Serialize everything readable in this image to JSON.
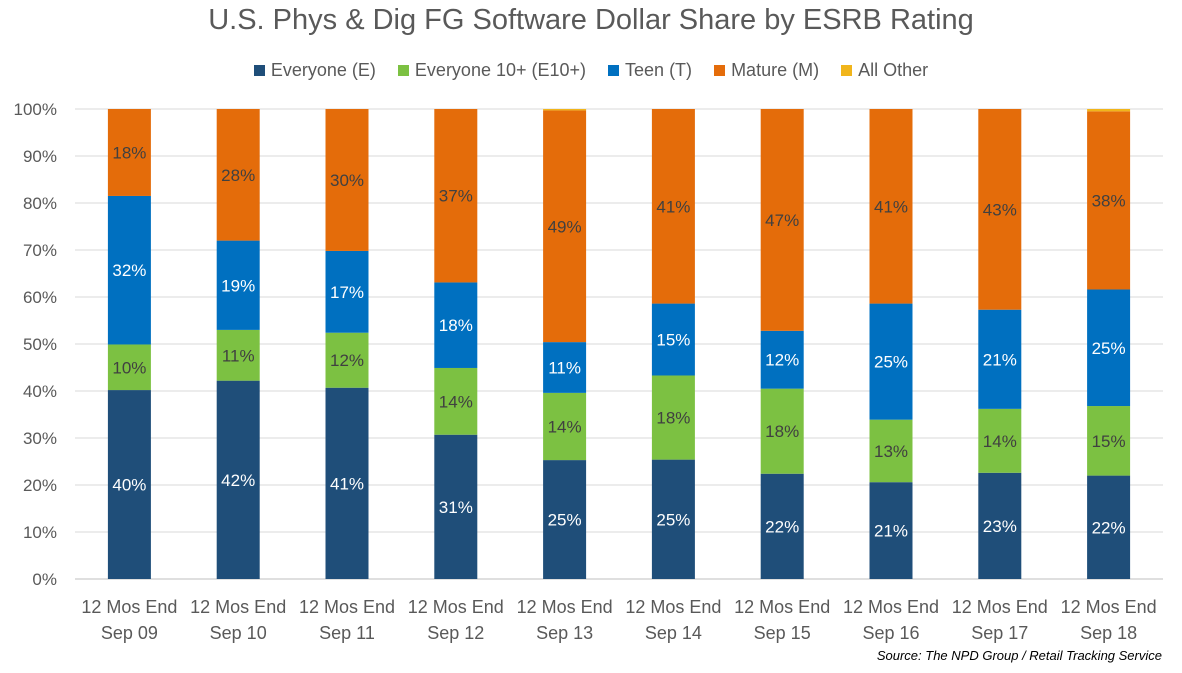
{
  "colors": {
    "everyone": "#1F4E79",
    "e10": "#7CC142",
    "teen": "#0070C0",
    "mature": "#E46C0A",
    "other": "#F1B51B",
    "grid": "#D9D9D9",
    "axis": "#BFBFBF"
  },
  "chart_data": {
    "type": "bar",
    "stacked": true,
    "title": "U.S. Phys & Dig FG Software Dollar Share by ESRB Rating",
    "categories": [
      [
        "12 Mos End",
        "Sep 09"
      ],
      [
        "12 Mos End",
        "Sep 10"
      ],
      [
        "12 Mos End",
        "Sep 11"
      ],
      [
        "12 Mos End",
        "Sep 12"
      ],
      [
        "12 Mos End",
        "Sep 13"
      ],
      [
        "12 Mos End",
        "Sep 14"
      ],
      [
        "12 Mos End",
        "Sep 15"
      ],
      [
        "12 Mos End",
        "Sep 16"
      ],
      [
        "12 Mos End",
        "Sep 17"
      ],
      [
        "12 Mos End",
        "Sep 18"
      ]
    ],
    "series": [
      {
        "key": "everyone",
        "name": "Everyone (E)",
        "values": [
          40.2,
          42.2,
          40.7,
          30.7,
          25.3,
          25.4,
          22.4,
          20.6,
          22.6,
          22.0
        ],
        "labels": [
          "40%",
          "42%",
          "41%",
          "31%",
          "25%",
          "25%",
          "22%",
          "21%",
          "23%",
          "22%"
        ],
        "label_color": "#ffffff"
      },
      {
        "key": "e10",
        "name": "Everyone 10+ (E10+)",
        "values": [
          9.7,
          10.8,
          11.7,
          14.2,
          14.3,
          17.9,
          18.1,
          13.3,
          13.6,
          14.8
        ],
        "labels": [
          "10%",
          "11%",
          "12%",
          "14%",
          "14%",
          "18%",
          "18%",
          "13%",
          "14%",
          "15%"
        ],
        "label_color": "#404040"
      },
      {
        "key": "teen",
        "name": "Teen (T)",
        "values": [
          31.6,
          19.0,
          17.4,
          18.2,
          10.8,
          15.3,
          12.3,
          24.7,
          21.1,
          24.8
        ],
        "labels": [
          "32%",
          "19%",
          "17%",
          "18%",
          "11%",
          "15%",
          "12%",
          "25%",
          "21%",
          "25%"
        ],
        "label_color": "#ffffff"
      },
      {
        "key": "mature",
        "name": "Mature (M)",
        "values": [
          18.5,
          28.0,
          30.2,
          36.9,
          49.3,
          41.4,
          47.2,
          41.4,
          42.7,
          37.9
        ],
        "labels": [
          "18%",
          "28%",
          "30%",
          "37%",
          "49%",
          "41%",
          "47%",
          "41%",
          "43%",
          "38%"
        ],
        "label_color": "#404040"
      },
      {
        "key": "other",
        "name": "All Other",
        "values": [
          0.0,
          0.0,
          0.0,
          0.0,
          0.3,
          0.0,
          0.0,
          0.0,
          0.0,
          0.5
        ],
        "labels": [
          "",
          "",
          "",
          "",
          "",
          "",
          "",
          "",
          "",
          ""
        ],
        "label_color": "#404040"
      }
    ],
    "y_ticks": [
      "0%",
      "10%",
      "20%",
      "30%",
      "40%",
      "50%",
      "60%",
      "70%",
      "80%",
      "90%",
      "100%"
    ],
    "ylim": [
      0,
      100
    ],
    "grid": true,
    "legend_position": "top"
  },
  "source": "Source: The NPD Group /  Retail Tracking Service"
}
